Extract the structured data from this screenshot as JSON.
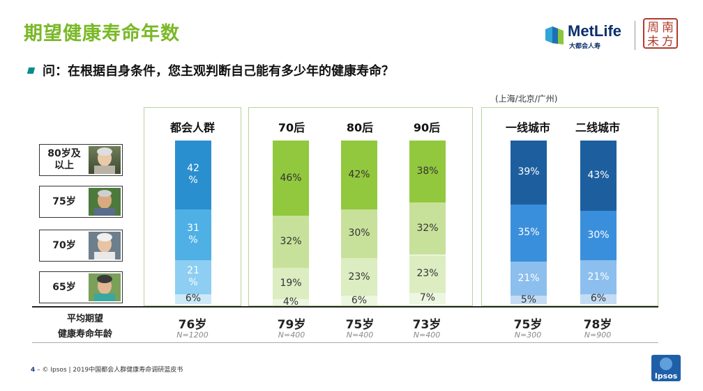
{
  "title": "期望健康寿命年数",
  "brand": {
    "metlife_word": "MetLife",
    "metlife_sub": "大都会人寿",
    "seal_chars": [
      "周",
      "南",
      "未",
      "方"
    ]
  },
  "question": "问：在根据自身条件，您主观判断自己能有多少年的健康寿命？",
  "city_note": "(上海/北京/广州)",
  "avg_label_1": "平均期望",
  "avg_label_2": "健康寿命年龄",
  "footer": {
    "page": "4",
    "dash": "–",
    "text": "© Ipsos | 2019中国都会人群健康寿命调研蓝皮书"
  },
  "ipsos_label": "Ipsos",
  "colors": {
    "title": "#7ab827",
    "blue_scheme": [
      "#2a8fcf",
      "#4fb0e6",
      "#8dcef2",
      "#cde9f8"
    ],
    "green_scheme": [
      "#92c83e",
      "#c7e19a",
      "#dcedc1",
      "#edf6e0"
    ],
    "navy_scheme": [
      "#1d5f9e",
      "#3a8fdc",
      "#8cbfee",
      "#c3dcf4"
    ]
  },
  "chart_data": {
    "type": "bar",
    "stacked": true,
    "categories": [
      "都会人群",
      "70后",
      "80后",
      "90后",
      "一线城市",
      "二线城市"
    ],
    "series": [
      {
        "name": "80岁及以上",
        "values": [
          42,
          46,
          42,
          38,
          39,
          43
        ]
      },
      {
        "name": "75岁",
        "values": [
          31,
          32,
          30,
          32,
          35,
          30
        ]
      },
      {
        "name": "70岁",
        "values": [
          21,
          19,
          23,
          23,
          21,
          21
        ]
      },
      {
        "name": "65岁",
        "values": [
          6,
          4,
          6,
          7,
          5,
          6
        ]
      }
    ],
    "segment_labels": [
      [
        "42\n%",
        "31\n%",
        "21\n%",
        "6%"
      ],
      [
        "46%",
        "32%",
        "19%",
        "4%"
      ],
      [
        "42%",
        "30%",
        "23%",
        "6%"
      ],
      [
        "38%",
        "32%",
        "23%",
        "7%"
      ],
      [
        "39%",
        "35%",
        "21%",
        "5%"
      ],
      [
        "43%",
        "30%",
        "21%",
        "6%"
      ]
    ],
    "color_schemes": [
      "blue_scheme",
      "green_scheme",
      "green_scheme",
      "green_scheme",
      "navy_scheme",
      "navy_scheme"
    ],
    "average_age": [
      "76岁",
      "79岁",
      "75岁",
      "73岁",
      "75岁",
      "78岁"
    ],
    "sample_size": [
      "N=1200",
      "N=400",
      "N=400",
      "N=400",
      "N=300",
      "N=900"
    ],
    "ylim": [
      0,
      100
    ],
    "legend_position": "left"
  },
  "row_labels": [
    "80岁及\n以上",
    "75岁",
    "70岁",
    "65岁"
  ]
}
